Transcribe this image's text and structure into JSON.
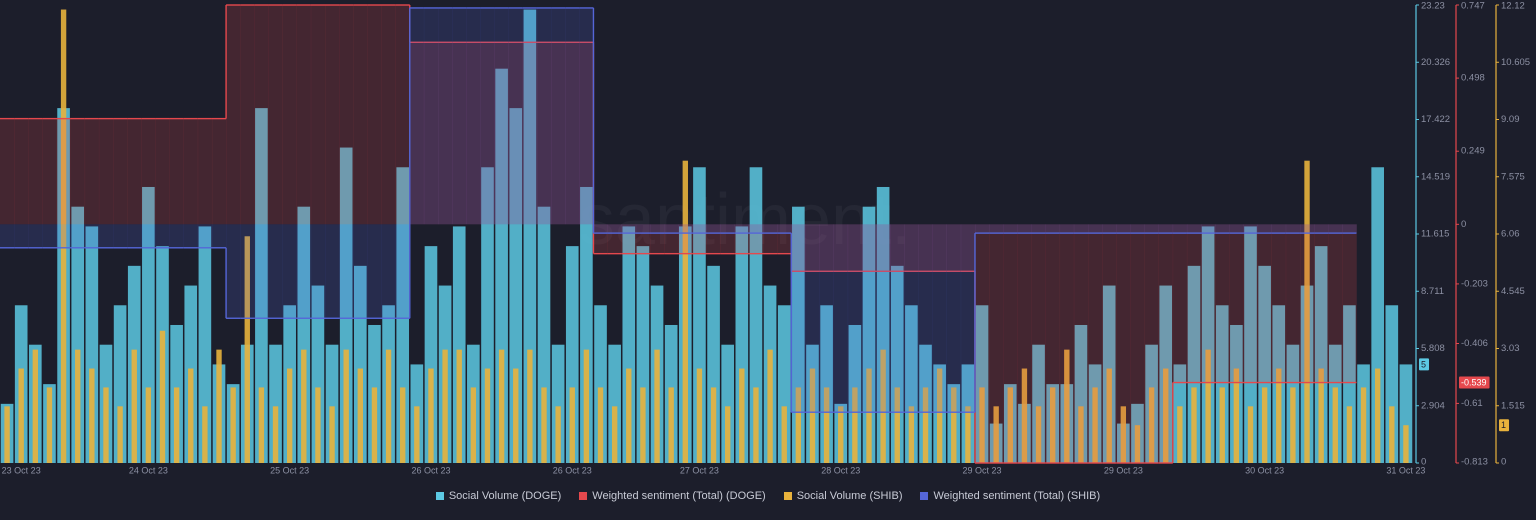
{
  "chart_data": {
    "type": "bar",
    "watermark": "santiment.",
    "categories": [
      null,
      "23 Oct 23",
      null,
      null,
      null,
      null,
      null,
      null,
      null,
      null,
      "24 Oct 23",
      null,
      null,
      null,
      null,
      null,
      null,
      null,
      null,
      null,
      "25 Oct 23",
      null,
      null,
      null,
      null,
      null,
      null,
      null,
      null,
      null,
      "26 Oct 23",
      null,
      null,
      null,
      null,
      null,
      null,
      null,
      null,
      null,
      "26 Oct 23",
      null,
      null,
      null,
      null,
      null,
      null,
      null,
      null,
      "27 Oct 23",
      null,
      null,
      null,
      null,
      null,
      null,
      null,
      null,
      null,
      "28 Oct 23",
      null,
      null,
      null,
      null,
      null,
      null,
      null,
      null,
      null,
      "29 Oct 23",
      null,
      null,
      null,
      null,
      null,
      null,
      null,
      null,
      null,
      "29 Oct 23",
      null,
      null,
      null,
      null,
      null,
      null,
      null,
      null,
      null,
      "30 Oct 23",
      null,
      null,
      null,
      null,
      null,
      null,
      null,
      null,
      null,
      "31 Oct 23"
    ],
    "ylim": [
      0,
      23.23
    ],
    "yticks": [
      0,
      2.904,
      5.808,
      8.711,
      11.615,
      14.519,
      17.422,
      20.326,
      23.23
    ],
    "y2lim": [
      -0.813,
      0.747
    ],
    "y2ticks": [
      -0.813,
      -0.61,
      -0.406,
      -0.203,
      0,
      0.249,
      0.498,
      0.747
    ],
    "y3lim": [
      0,
      12.12
    ],
    "y3ticks": [
      0,
      1.515,
      3.03,
      4.545,
      6.06,
      7.575,
      9.09,
      10.605,
      12.12
    ],
    "series": [
      {
        "name": "Social Volume (DOGE)",
        "type": "bar",
        "axis": "y",
        "color": "#5cc9e3",
        "last_value_badge": true,
        "values": [
          3,
          8,
          6,
          4,
          18,
          13,
          12,
          6,
          8,
          10,
          14,
          11,
          7,
          9,
          12,
          5,
          4,
          6,
          18,
          6,
          8,
          13,
          9,
          6,
          16,
          10,
          7,
          8,
          15,
          5,
          11,
          9,
          12,
          6,
          15,
          20,
          18,
          23,
          13,
          6,
          11,
          14,
          8,
          6,
          12,
          11,
          9,
          7,
          12,
          15,
          10,
          6,
          12,
          15,
          9,
          8,
          13,
          6,
          8,
          3,
          7,
          13,
          14,
          10,
          8,
          6,
          5,
          4,
          5,
          8,
          2,
          4,
          3,
          6,
          4,
          4,
          7,
          5,
          9,
          2,
          3,
          6,
          9,
          5,
          10,
          12,
          8,
          7,
          12,
          10,
          8,
          6,
          9,
          11,
          6,
          8,
          5,
          15,
          8,
          5
        ]
      },
      {
        "name": "Weighted sentiment (Total) (DOGE)",
        "type": "step",
        "axis": "y2",
        "color": "#e5484d",
        "last_value_badge": true,
        "values": [
          0.36,
          0.36,
          0.36,
          0.36,
          0.36,
          0.36,
          0.36,
          0.36,
          0.36,
          0.36,
          0.36,
          0.36,
          0.36,
          0.36,
          0.36,
          0.36,
          0.747,
          0.747,
          0.747,
          0.747,
          0.747,
          0.747,
          0.747,
          0.747,
          0.747,
          0.747,
          0.747,
          0.747,
          0.747,
          0.62,
          0.62,
          0.62,
          0.62,
          0.62,
          0.62,
          0.62,
          0.62,
          0.62,
          0.62,
          0.62,
          0.62,
          0.62,
          -0.1,
          -0.1,
          -0.1,
          -0.1,
          -0.1,
          -0.1,
          -0.1,
          -0.1,
          -0.1,
          -0.1,
          -0.1,
          -0.1,
          -0.1,
          -0.1,
          -0.16,
          -0.16,
          -0.16,
          -0.16,
          -0.16,
          -0.16,
          -0.16,
          -0.16,
          -0.16,
          -0.16,
          -0.16,
          -0.16,
          -0.16,
          -0.813,
          -0.813,
          -0.813,
          -0.813,
          -0.813,
          -0.813,
          -0.813,
          -0.813,
          -0.813,
          -0.813,
          -0.813,
          -0.813,
          -0.813,
          -0.813,
          -0.539,
          -0.539,
          -0.539,
          -0.539,
          -0.539,
          -0.539,
          -0.539,
          -0.539,
          -0.539,
          -0.539,
          -0.539,
          -0.539,
          -0.539,
          null,
          null,
          null,
          null
        ]
      },
      {
        "name": "Social Volume (SHIB)",
        "type": "bar",
        "axis": "y3",
        "color": "#e8b23c",
        "last_value_badge": true,
        "values": [
          1.5,
          2.5,
          3,
          2,
          12,
          3,
          2.5,
          2,
          1.5,
          3,
          2,
          3.5,
          2,
          2.5,
          1.5,
          3,
          2,
          6,
          2,
          1.5,
          2.5,
          3,
          2,
          1.5,
          3,
          2.5,
          2,
          3,
          2,
          1.5,
          2.5,
          3,
          3,
          2,
          2.5,
          3,
          2.5,
          3,
          2,
          1.5,
          2,
          3,
          2,
          1.5,
          2.5,
          2,
          3,
          2,
          8,
          2.5,
          2,
          1.5,
          2.5,
          2,
          3,
          1.5,
          2,
          2.5,
          2,
          1.5,
          2,
          2.5,
          3,
          2,
          1.5,
          2,
          2.5,
          2,
          1.5,
          2,
          1.5,
          2,
          2.5,
          1.5,
          2,
          3,
          1.5,
          2,
          2.5,
          1.5,
          1,
          2,
          2.5,
          1.5,
          2,
          3,
          2,
          2.5,
          1.5,
          2,
          2.5,
          2,
          8,
          2.5,
          2,
          1.5,
          2,
          2.5,
          1.5,
          1
        ]
      },
      {
        "name": "Weighted sentiment (Total) (SHIB)",
        "type": "step",
        "axis": "y2",
        "color": "#5566d8",
        "last_value_badge": false,
        "values": [
          -0.08,
          -0.08,
          -0.08,
          -0.08,
          -0.08,
          -0.08,
          -0.08,
          -0.08,
          -0.08,
          -0.08,
          -0.08,
          -0.08,
          -0.08,
          -0.08,
          -0.08,
          -0.08,
          -0.32,
          -0.32,
          -0.32,
          -0.32,
          -0.32,
          -0.32,
          -0.32,
          -0.32,
          -0.32,
          -0.32,
          -0.32,
          -0.32,
          -0.32,
          0.737,
          0.737,
          0.737,
          0.737,
          0.737,
          0.737,
          0.737,
          0.737,
          0.737,
          0.737,
          0.737,
          0.737,
          0.737,
          -0.03,
          -0.03,
          -0.03,
          -0.03,
          -0.03,
          -0.03,
          -0.03,
          -0.03,
          -0.03,
          -0.03,
          -0.03,
          -0.03,
          -0.03,
          -0.03,
          -0.64,
          -0.64,
          -0.64,
          -0.64,
          -0.64,
          -0.64,
          -0.64,
          -0.64,
          -0.64,
          -0.64,
          -0.64,
          -0.64,
          -0.64,
          -0.03,
          -0.03,
          -0.03,
          -0.03,
          -0.03,
          -0.03,
          -0.03,
          -0.03,
          -0.03,
          -0.03,
          -0.03,
          -0.03,
          -0.03,
          -0.03,
          -0.03,
          -0.03,
          -0.03,
          -0.03,
          -0.03,
          -0.03,
          -0.03,
          -0.03,
          -0.03,
          -0.03,
          -0.03,
          -0.03,
          -0.03,
          null,
          null,
          null,
          null
        ]
      }
    ]
  }
}
